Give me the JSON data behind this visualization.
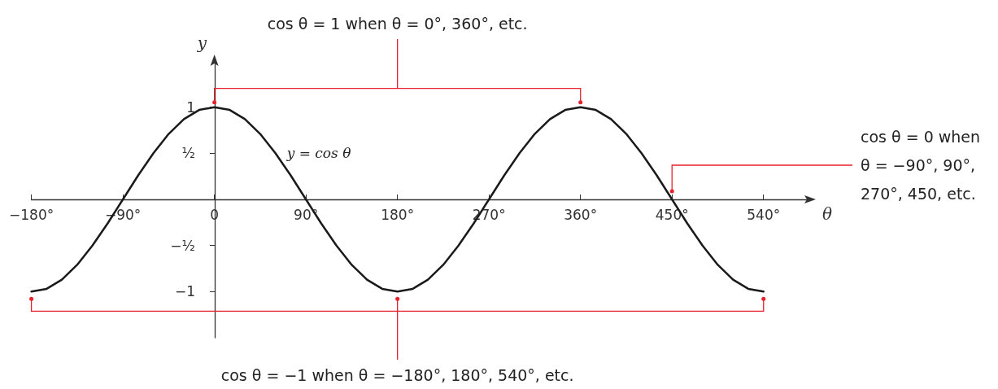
{
  "chart_data": {
    "type": "line",
    "x": [
      -180,
      -165,
      -150,
      -135,
      -120,
      -105,
      -90,
      -75,
      -60,
      -45,
      -30,
      -15,
      0,
      15,
      30,
      45,
      60,
      75,
      90,
      105,
      120,
      135,
      150,
      165,
      180,
      195,
      210,
      225,
      240,
      255,
      270,
      285,
      300,
      315,
      330,
      345,
      360,
      375,
      390,
      405,
      420,
      435,
      450,
      465,
      480,
      495,
      510,
      525,
      540
    ],
    "series": [
      {
        "name": "y = cos θ",
        "color": "#1a1a1a",
        "values": [
          -1,
          -0.97,
          -0.87,
          -0.71,
          -0.5,
          -0.26,
          0,
          0.26,
          0.5,
          0.71,
          0.87,
          0.97,
          1,
          0.97,
          0.87,
          0.71,
          0.5,
          0.26,
          0,
          -0.26,
          -0.5,
          -0.71,
          -0.87,
          -0.97,
          -1,
          -0.97,
          -0.87,
          -0.71,
          -0.5,
          -0.26,
          0,
          0.26,
          0.5,
          0.71,
          0.87,
          0.97,
          1,
          0.97,
          0.87,
          0.71,
          0.5,
          0.26,
          0,
          -0.26,
          -0.5,
          -0.71,
          -0.87,
          -0.97,
          -1
        ]
      }
    ],
    "xlabel": "θ",
    "ylabel": "y",
    "xlim": [
      -180,
      585
    ],
    "ylim": [
      -1.5,
      1.5
    ],
    "xticks": [
      {
        "value": -180,
        "label": "−180°"
      },
      {
        "value": -90,
        "label": "−90°"
      },
      {
        "value": 0,
        "label": "0"
      },
      {
        "value": 90,
        "label": "90°"
      },
      {
        "value": 180,
        "label": "180°"
      },
      {
        "value": 270,
        "label": "270°"
      },
      {
        "value": 360,
        "label": "360°"
      },
      {
        "value": 450,
        "label": "450°"
      },
      {
        "value": 540,
        "label": "540°"
      }
    ],
    "yticks": [
      {
        "value": -1,
        "label": "−1"
      },
      {
        "value": -0.5,
        "label": "−½"
      },
      {
        "value": 0.5,
        "label": "½"
      },
      {
        "value": 1,
        "label": "1"
      }
    ],
    "grid": false,
    "legend": false,
    "marker": "none",
    "line_style": "solid",
    "annotations": [
      "cos θ = 1 when θ = 0°, 360°, etc.",
      "cos θ = 0 when\nθ = −90°, 90°,\n270°, 450, etc.",
      "cos θ = −1 when θ = −180°, 180°, 540°, etc."
    ]
  }
}
